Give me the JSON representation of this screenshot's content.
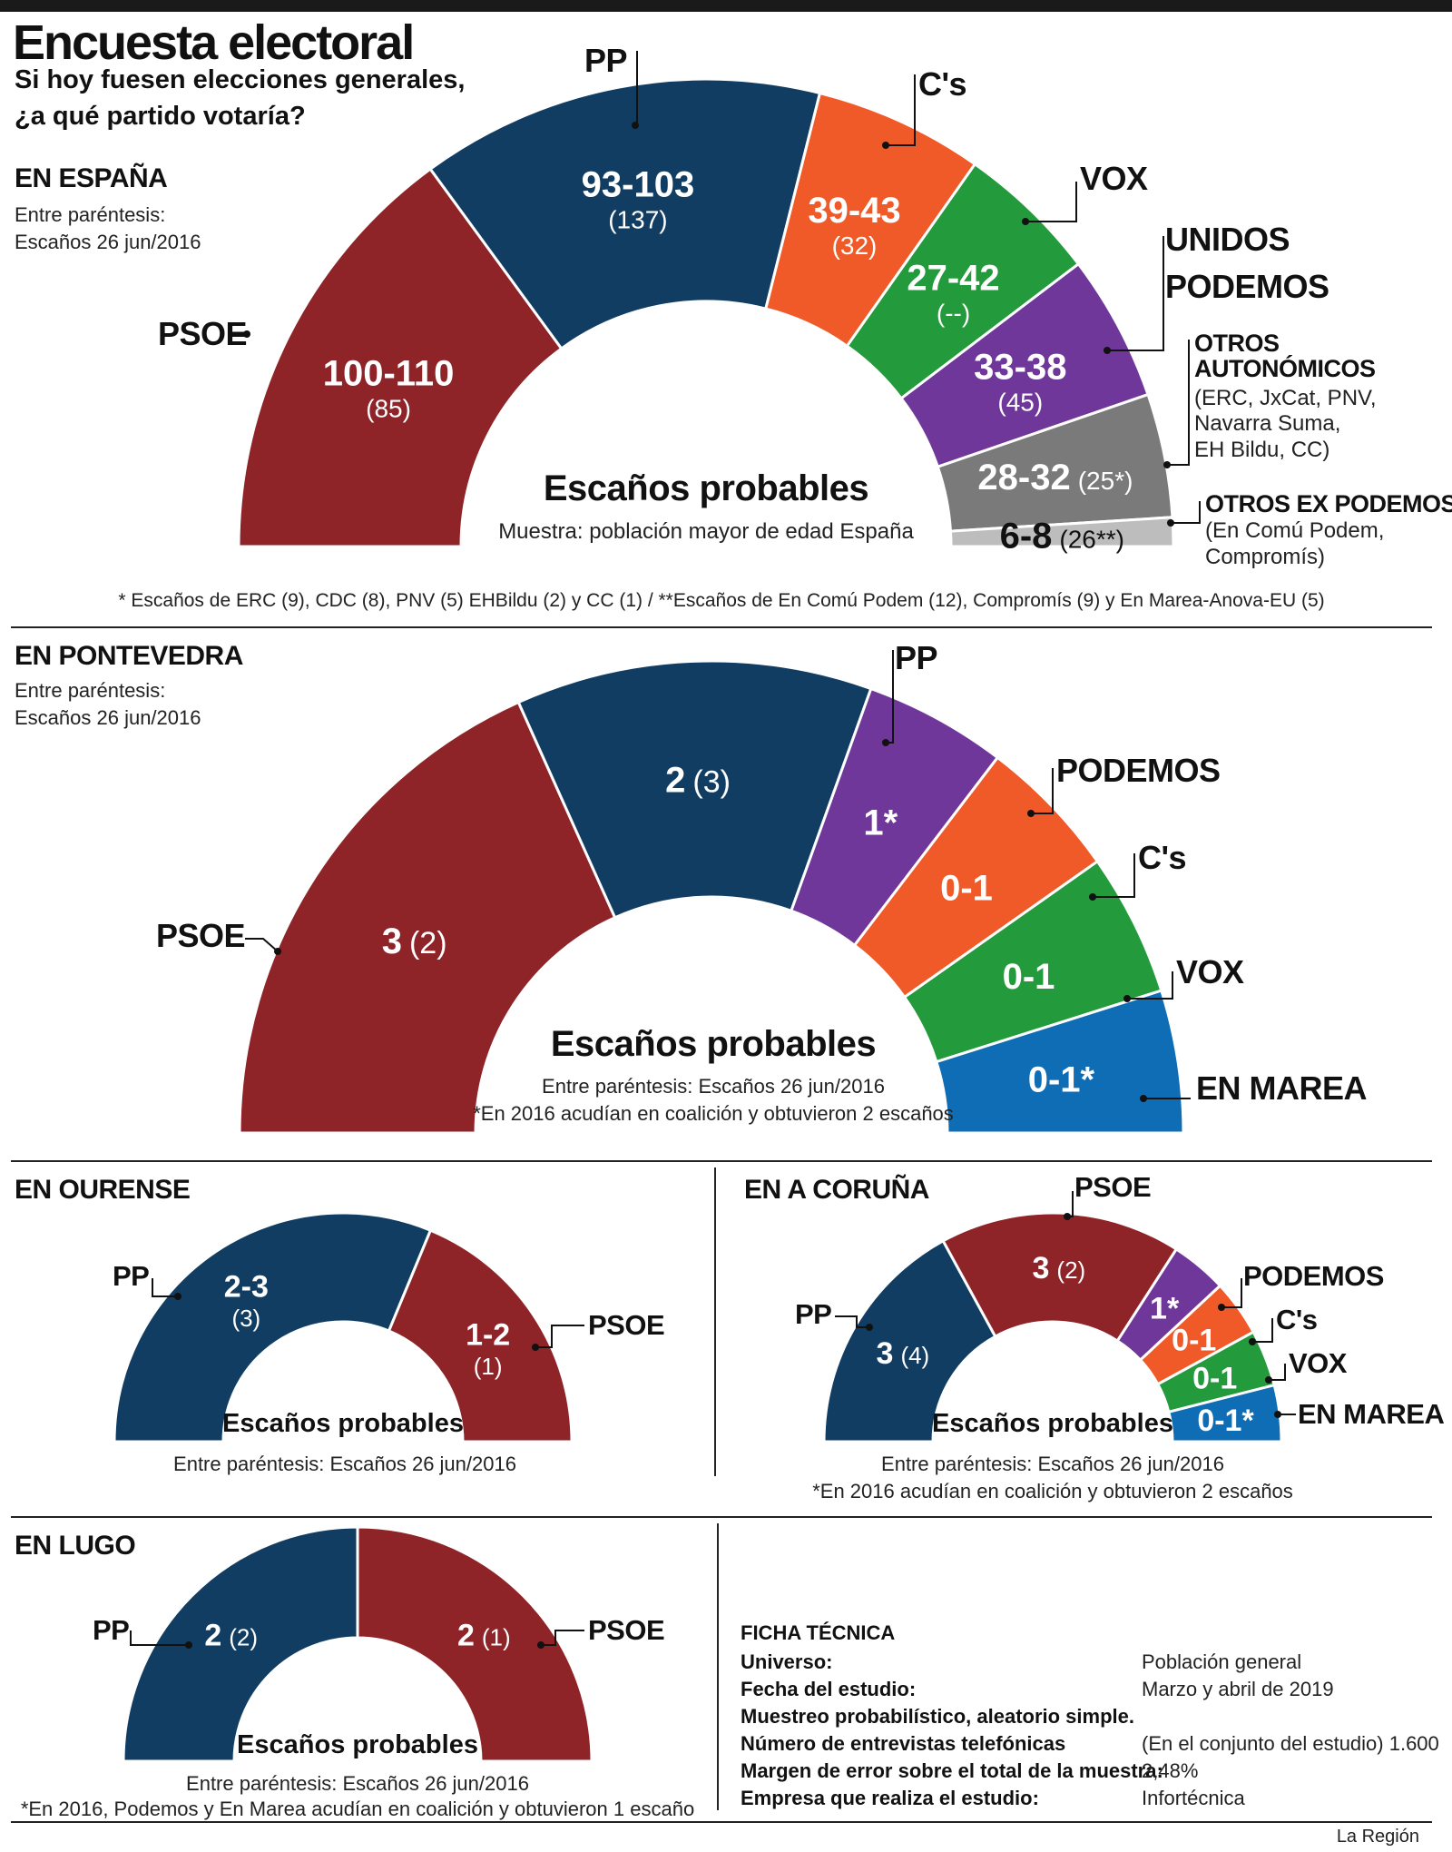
{
  "title": "Encuesta electoral",
  "question": [
    "Si hoy fuesen elecciones generales,",
    "¿a qué partido votaría?"
  ],
  "paren_note": [
    "Entre paréntesis:",
    "Escaños 26 jun/2016"
  ],
  "seats_label": "Escaños probables",
  "paren_inline": "Entre paréntesis: Escaños 26 jun/2016",
  "spain": {
    "section": "EN ESPAÑA",
    "sample": "Muestra: población mayor de edad España",
    "footnote": "* Escaños de ERC (9), CDC (8), PNV (5) EHBildu (2) y CC (1)   /   **Escaños de En Comú Podem (12), Compromís (9) y En Marea-Anova-EU (5)",
    "otros_auto_detail": [
      "(ERC, JxCat, PNV,",
      "Navarra Suma,",
      "EH Bildu, CC)"
    ],
    "otros_ex_detail": [
      "(En Comú Podem,",
      "Compromís)"
    ]
  },
  "pontevedra": {
    "section": "EN PONTEVEDRA",
    "coalition_note": "*En 2016 acudían en coalición y obtuvieron 2 escaños"
  },
  "ourense": {
    "section": "EN OURENSE"
  },
  "coruna": {
    "section": "EN A CORUÑA",
    "coalition_note": "*En 2016 acudían en coalición y obtuvieron 2 escaños"
  },
  "lugo": {
    "section": "EN LUGO",
    "coalition_note": "*En 2016, Podemos y En Marea acudían en coalición y obtuvieron 1 escaño"
  },
  "ficha": {
    "heading": "FICHA TÉCNICA",
    "rows": [
      {
        "k": "Universo:",
        "v": "Población general"
      },
      {
        "k": "Fecha del estudio:",
        "v": "Marzo y abril de 2019"
      },
      {
        "k": "Muestreo probabilístico, aleatorio simple.",
        "v": ""
      },
      {
        "k": "Número de entrevistas telefónicas",
        "v": "(En el conjunto del estudio) 1.600"
      },
      {
        "k": "Margen de error sobre el total de la muestra:",
        "v": "2,48%"
      },
      {
        "k": "Empresa que realiza el estudio:",
        "v": "Infortécnica"
      }
    ]
  },
  "source": "La Región",
  "colors": {
    "PSOE": "#8e2328",
    "PP": "#123d63",
    "Cs": "#f05a28",
    "VOX": "#239a3b",
    "PODEMOS": "#70379a",
    "OTROS_AUTO": "#7a7a7a",
    "OTROS_EX": "#bdbdbd",
    "EN_MAREA": "#0f6db5"
  },
  "chart_data": [
    {
      "type": "pie",
      "id": "espana",
      "series": [
        {
          "name": "PSOE",
          "value": "100-110",
          "prev": "(85)",
          "share": 105
        },
        {
          "name": "PP",
          "value": "93-103",
          "prev": "(137)",
          "share": 98
        },
        {
          "name": "C's",
          "value": "39-43",
          "prev": "(32)",
          "share": 41
        },
        {
          "name": "VOX",
          "value": "27-42",
          "prev": "(--)",
          "share": 34.5
        },
        {
          "name": "UNIDOS PODEMOS",
          "value": "33-38",
          "prev": "(45)",
          "share": 35.5
        },
        {
          "name": "OTROS AUTONÓMICOS",
          "value": "28-32",
          "prev": "(25*)",
          "share": 30
        },
        {
          "name": "OTROS EX PODEMOS",
          "value": "6-8",
          "prev": "(26**)",
          "share": 7
        }
      ]
    },
    {
      "type": "pie",
      "id": "pontevedra",
      "series": [
        {
          "name": "PSOE",
          "value": "3",
          "prev": "(2)",
          "share": 3
        },
        {
          "name": "PP",
          "value": "2",
          "prev": "(3)",
          "share": 2
        },
        {
          "name": "PODEMOS",
          "value": "1*",
          "prev": "",
          "share": 0.8
        },
        {
          "name": "C's",
          "value": "0-1",
          "prev": "",
          "share": 0.8
        },
        {
          "name": "VOX",
          "value": "0-1",
          "prev": "",
          "share": 0.8
        },
        {
          "name": "EN MAREA",
          "value": "0-1*",
          "prev": "",
          "share": 0.8
        }
      ]
    },
    {
      "type": "pie",
      "id": "ourense",
      "series": [
        {
          "name": "PP",
          "value": "2-3",
          "prev": "(3)",
          "share": 2.5
        },
        {
          "name": "PSOE",
          "value": "1-2",
          "prev": "(1)",
          "share": 1.5
        }
      ]
    },
    {
      "type": "pie",
      "id": "coruna",
      "series": [
        {
          "name": "PP",
          "value": "3",
          "prev": "(4)",
          "share": 3
        },
        {
          "name": "PSOE",
          "value": "3",
          "prev": "(2)",
          "share": 3
        },
        {
          "name": "PODEMOS",
          "value": "1*",
          "prev": "",
          "share": 0.7
        },
        {
          "name": "C's",
          "value": "0-1",
          "prev": "",
          "share": 0.7
        },
        {
          "name": "VOX",
          "value": "0-1",
          "prev": "",
          "share": 0.7
        },
        {
          "name": "EN MAREA",
          "value": "0-1*",
          "prev": "",
          "share": 0.7
        }
      ]
    },
    {
      "type": "pie",
      "id": "lugo",
      "series": [
        {
          "name": "PP",
          "value": "2",
          "prev": "(2)",
          "share": 2
        },
        {
          "name": "PSOE",
          "value": "2",
          "prev": "(1)",
          "share": 2
        }
      ]
    }
  ]
}
